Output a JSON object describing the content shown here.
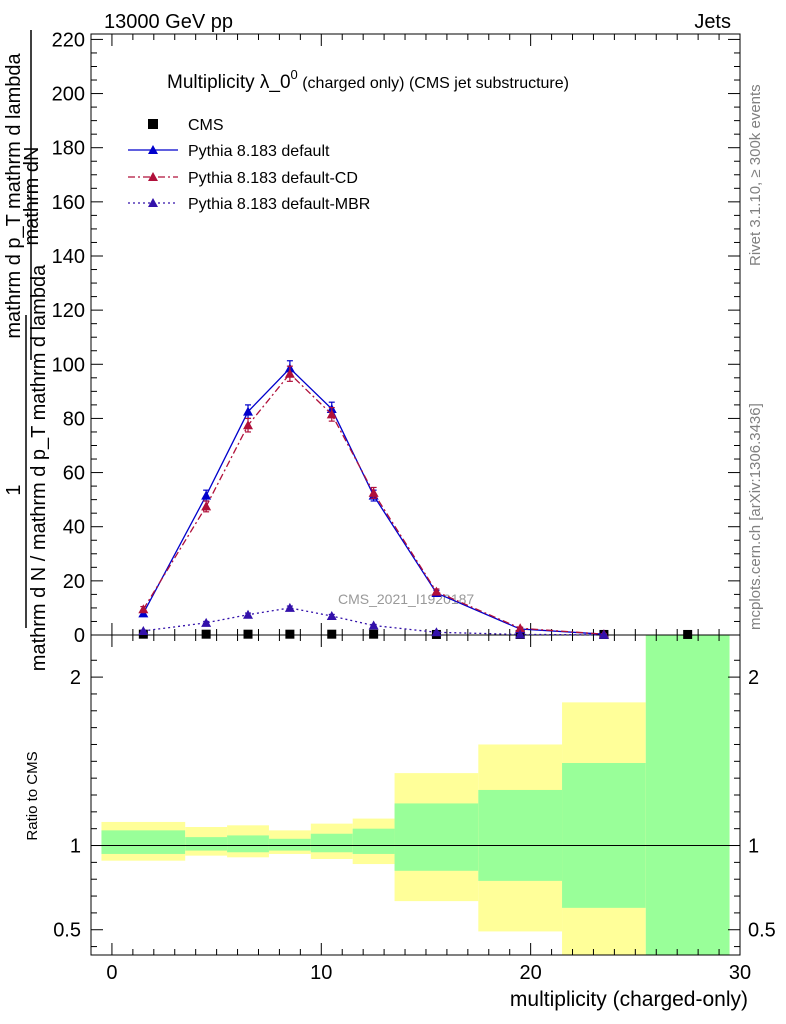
{
  "header": {
    "left": "13000 GeV pp",
    "right": "Jets"
  },
  "side_labels": {
    "right_top": "Rivet 3.1.10, ≥ 300k events",
    "right_bottom": "mcplots.cern.ch [arXiv:1306.3436]"
  },
  "chart_data": [
    {
      "type": "line",
      "title_main": "Multiplicity λ_0",
      "title_sup": "0",
      "title_sub": " (charged only) (CMS jet substructure)",
      "ylabel_upper": "mathrm dN",
      "ylabel_mid": "mathrm d p_T mathrm d lambda",
      "ylabel_T": "T",
      "ylabel_one": "1",
      "ylabel_lower": "mathrm d N / mathrm d p_T mathrm d lambda",
      "watermark": "CMS_2021_I1920187",
      "xlim": [
        -1,
        30
      ],
      "ylim": [
        0,
        222
      ],
      "y_ticks": [
        0,
        20,
        40,
        60,
        80,
        100,
        120,
        140,
        160,
        180,
        200,
        220
      ],
      "legend": [
        "CMS",
        "Pythia 8.183 default",
        "Pythia 8.183 default-CD",
        "Pythia 8.183 default-MBR"
      ],
      "series": [
        {
          "name": "CMS",
          "color": "#000000",
          "marker": "square",
          "x": [
            1.5,
            4.5,
            6.5,
            8.5,
            10.5,
            12.5,
            15.5,
            19.5,
            23.5,
            27.5
          ],
          "values": [
            0.3,
            0.3,
            0.3,
            0.3,
            0.3,
            0.3,
            0.2,
            0.2,
            0.2,
            0.2
          ]
        },
        {
          "name": "Pythia 8.183 default",
          "color": "#0000cc",
          "marker": "triangle",
          "dash": "",
          "x": [
            1.5,
            4.5,
            6.5,
            8.5,
            10.5,
            12.5,
            15.5,
            19.5,
            23.5
          ],
          "values": [
            8,
            51.5,
            82.5,
            98.5,
            83.5,
            51.5,
            15.5,
            2.2,
            0.3
          ],
          "errors": [
            1.0,
            2.0,
            2.5,
            2.8,
            2.5,
            2.0,
            1.0,
            0.4,
            0.1
          ]
        },
        {
          "name": "Pythia 8.183 default-CD",
          "color": "#b0103a",
          "marker": "triangle",
          "dash": "7,3,2,3",
          "x": [
            1.5,
            4.5,
            6.5,
            8.5,
            10.5,
            12.5,
            15.5,
            19.5,
            23.5
          ],
          "values": [
            9.5,
            47.5,
            77.5,
            96.5,
            81.5,
            52.5,
            16,
            2.5,
            0.3
          ],
          "errors": [
            1.0,
            2.0,
            2.5,
            2.8,
            2.5,
            2.0,
            1.0,
            0.4,
            0.1
          ]
        },
        {
          "name": "Pythia 8.183 default-MBR",
          "color": "#3311aa",
          "marker": "triangle",
          "dash": "2,3",
          "x": [
            1.5,
            4.5,
            6.5,
            8.5,
            10.5,
            12.5,
            15.5,
            19.5,
            23.5
          ],
          "values": [
            1.5,
            4.5,
            7.5,
            10,
            7,
            3.5,
            1.0,
            0.2,
            0.05
          ],
          "errors": [
            0.3,
            0.5,
            0.6,
            0.7,
            0.6,
            0.4,
            0.2,
            0.05,
            0.02
          ]
        }
      ]
    },
    {
      "type": "area",
      "ylabel": "Ratio to CMS",
      "xlabel": "multiplicity (charged-only)",
      "xlim": [
        -1,
        30
      ],
      "ylim": [
        0.35,
        2.25
      ],
      "y_ticks": [
        0.5,
        1,
        2
      ],
      "y_tick_labels": [
        "0.5",
        "1",
        "2"
      ],
      "x_ticks": [
        0,
        10,
        20,
        30
      ],
      "x_tick_labels": [
        "0",
        "10",
        "20",
        "30"
      ],
      "reference_line": 1,
      "bins": [
        {
          "lo": -0.5,
          "hi": 3.5,
          "yellow": [
            0.91,
            1.14
          ],
          "green": [
            0.95,
            1.09
          ]
        },
        {
          "lo": 3.5,
          "hi": 5.5,
          "yellow": [
            0.94,
            1.11
          ],
          "green": [
            0.97,
            1.05
          ]
        },
        {
          "lo": 5.5,
          "hi": 7.5,
          "yellow": [
            0.93,
            1.12
          ],
          "green": [
            0.96,
            1.06
          ]
        },
        {
          "lo": 7.5,
          "hi": 9.5,
          "yellow": [
            0.95,
            1.09
          ],
          "green": [
            0.97,
            1.04
          ]
        },
        {
          "lo": 9.5,
          "hi": 11.5,
          "yellow": [
            0.92,
            1.13
          ],
          "green": [
            0.96,
            1.07
          ]
        },
        {
          "lo": 11.5,
          "hi": 13.5,
          "yellow": [
            0.89,
            1.16
          ],
          "green": [
            0.95,
            1.1
          ]
        },
        {
          "lo": 13.5,
          "hi": 17.5,
          "yellow": [
            0.67,
            1.43
          ],
          "green": [
            0.85,
            1.25
          ]
        },
        {
          "lo": 17.5,
          "hi": 21.5,
          "yellow": [
            0.49,
            1.6
          ],
          "green": [
            0.79,
            1.33
          ]
        },
        {
          "lo": 21.5,
          "hi": 25.5,
          "yellow": [
            0.35,
            1.85
          ],
          "green": [
            0.63,
            1.49
          ]
        },
        {
          "lo": 25.5,
          "hi": 29.5,
          "yellow": [
            0.35,
            2.25
          ],
          "green": [
            0.35,
            2.25
          ]
        }
      ],
      "colors": {
        "yellow": "#ffff99",
        "green": "#99ff99"
      }
    }
  ]
}
